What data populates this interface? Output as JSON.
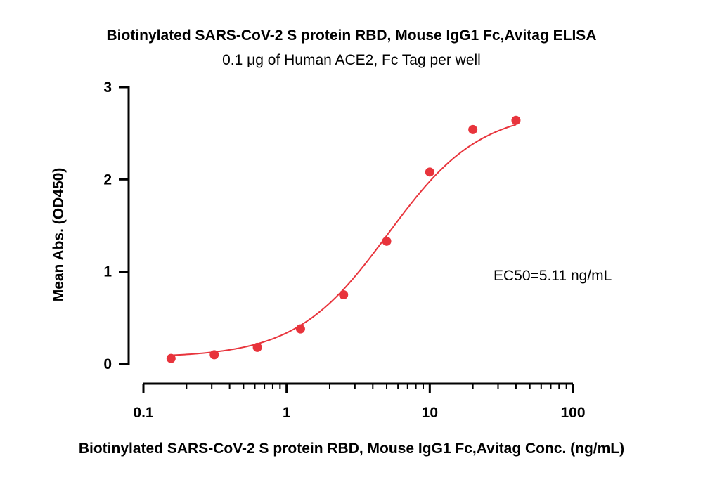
{
  "chart_data": {
    "type": "scatter",
    "title": "Biotinylated SARS-CoV-2 S protein RBD, Mouse IgG1 Fc,Avitag ELISA",
    "subtitle": "0.1 μg of Human ACE2, Fc Tag per well",
    "xlabel": "Biotinylated SARS-CoV-2 S protein RBD, Mouse IgG1 Fc,Avitag Conc. (ng/mL)",
    "ylabel": "Mean Abs. (OD450)",
    "x_scale": "log",
    "xlim": [
      0.1,
      100
    ],
    "ylim": [
      0,
      3
    ],
    "x_ticks": [
      0.1,
      1,
      10,
      100
    ],
    "x_tick_labels": [
      "0.1",
      "1",
      "10",
      "100"
    ],
    "y_ticks": [
      0,
      1,
      2,
      3
    ],
    "y_tick_labels": [
      "0",
      "1",
      "2",
      "3"
    ],
    "grid": false,
    "annotation": "EC50=5.11 ng/mL",
    "series": [
      {
        "color": "#e8343c",
        "x": [
          0.156,
          0.3125,
          0.625,
          1.25,
          2.5,
          5,
          10,
          20,
          40
        ],
        "y": [
          0.06,
          0.1,
          0.18,
          0.38,
          0.75,
          1.33,
          2.08,
          2.54,
          2.64
        ]
      }
    ],
    "fit": {
      "type": "4PL",
      "color": "#e8343c",
      "bottom": 0.07,
      "top": 2.75,
      "ec50": 5.11,
      "hill": 1.35,
      "x_range": [
        0.156,
        40
      ]
    }
  }
}
